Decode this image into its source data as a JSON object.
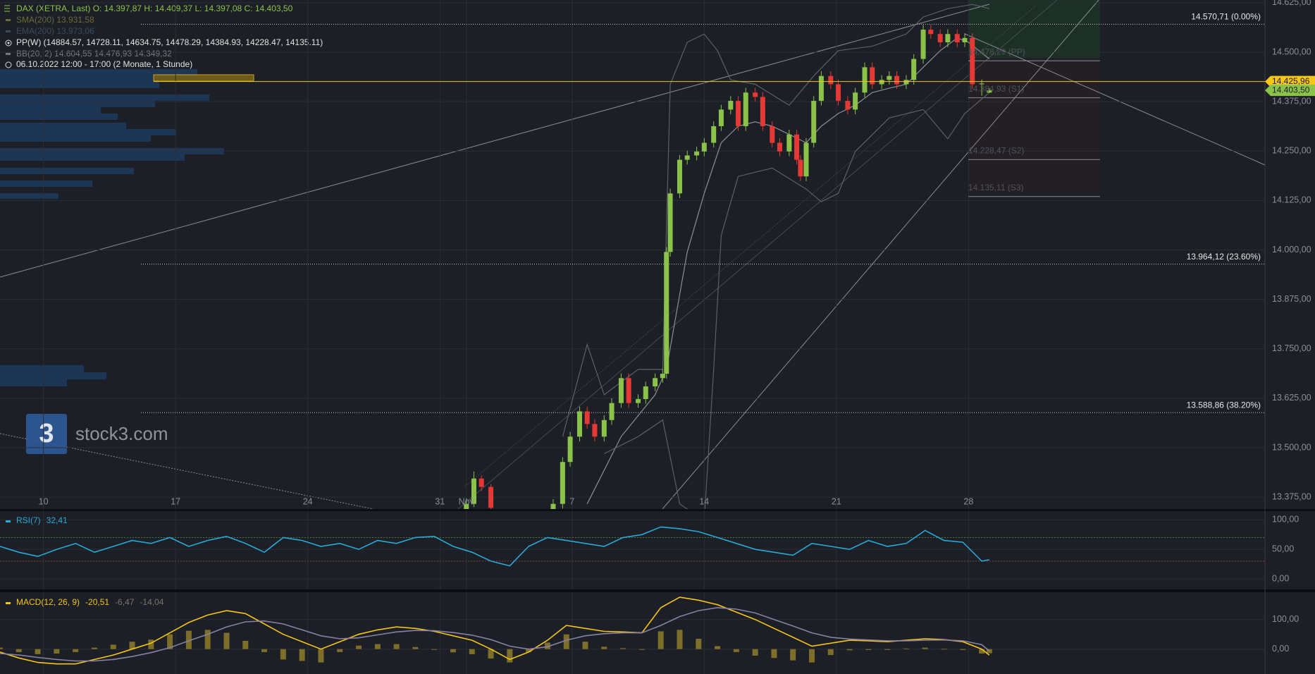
{
  "header": {
    "instrument": "DAX (XETRA, Last)  O: 14.397,87  H: 14.409,37  L: 14.397,08  C: 14.403,50",
    "sma": "SMA(200)  13.931,58",
    "ema": "EMA(200)  13.973,06",
    "pp": "PP(W)  (14884.57, 14728.11, 14634.75, 14478.29, 14384.93, 14228.47, 14135.11)",
    "bb": "BB(20, 2)  14.604,55  14.476,93  14.349,32",
    "period": "06.10.2022 12:00 - 17:00   (2 Monate, 1 Stunde)"
  },
  "watermark": {
    "logo": "3",
    "text": "stock3.com"
  },
  "chart_data": [
    {
      "type": "candlestick",
      "up_color": "#8bc34a",
      "down_color": "#e53935",
      "xlim": [
        0,
        67
      ],
      "xticks": [
        {
          "value": 2.3,
          "label": "10"
        },
        {
          "value": 9.3,
          "label": "17"
        },
        {
          "value": 16.3,
          "label": "24"
        },
        {
          "value": 23.3,
          "label": "31"
        },
        {
          "value": 24.7,
          "label": "Nov"
        },
        {
          "value": 30.3,
          "label": "7"
        },
        {
          "value": 37.3,
          "label": "14"
        },
        {
          "value": 44.3,
          "label": "21"
        },
        {
          "value": 51.3,
          "label": "28"
        }
      ],
      "ylim": [
        13345,
        14632
      ],
      "yticks": [
        {
          "value": 13375,
          "label": "13.375,00"
        },
        {
          "value": 13500,
          "label": "13.500,00"
        },
        {
          "value": 13625,
          "label": "13.625,00"
        },
        {
          "value": 13750,
          "label": "13.750,00"
        },
        {
          "value": 13875,
          "label": "13.875,00"
        },
        {
          "value": 14000,
          "label": "14.000,00"
        },
        {
          "value": 14125,
          "label": "14.125,00"
        },
        {
          "value": 14250,
          "label": "14.250,00"
        },
        {
          "value": 14375,
          "label": "14.375,00"
        },
        {
          "value": 14500,
          "label": "14.500,00"
        },
        {
          "value": 14625,
          "label": "14.625,00"
        }
      ],
      "grid": true,
      "x": [
        24.7,
        25.1,
        25.5,
        26.0,
        29.3,
        29.8,
        30.2,
        30.7,
        31.1,
        31.5,
        32.0,
        32.4,
        32.9,
        33.3,
        33.8,
        34.2,
        34.7,
        35.1,
        35.3,
        35.5,
        36.0,
        36.4,
        36.9,
        37.3,
        37.8,
        38.2,
        38.7,
        39.1,
        39.5,
        40.0,
        40.4,
        40.9,
        41.3,
        41.8,
        42.2,
        42.4,
        42.7,
        43.1,
        43.5,
        44.0,
        44.4,
        44.9,
        45.3,
        45.8,
        46.2,
        46.7,
        47.1,
        47.5,
        48.0,
        48.4,
        48.9,
        49.3,
        49.8,
        50.2,
        50.7,
        51.1,
        51.5,
        52.0,
        52.4
      ],
      "open": [
        13330,
        13358,
        13422,
        13401,
        13320,
        13358,
        13464,
        13528,
        13592,
        13560,
        13528,
        13570,
        13613,
        13676,
        13613,
        13623,
        13655,
        13676,
        13687,
        13995,
        14143,
        14228,
        14239,
        14249,
        14271,
        14313,
        14355,
        14377,
        14313,
        14398,
        14387,
        14313,
        14271,
        14249,
        14292,
        14228,
        14186,
        14271,
        14377,
        14440,
        14419,
        14377,
        14355,
        14398,
        14462,
        14419,
        14430,
        14440,
        14419,
        14430,
        14483,
        14557,
        14546,
        14525,
        14546,
        14525,
        14536,
        14419,
        14397.87
      ],
      "high": [
        13372,
        13440,
        13430,
        13408,
        13370,
        13476,
        13540,
        13604,
        13604,
        13572,
        13582,
        13625,
        13688,
        13688,
        13635,
        13667,
        13688,
        13699,
        14007,
        14155,
        14240,
        14251,
        14261,
        14283,
        14325,
        14367,
        14389,
        14389,
        14410,
        14410,
        14399,
        14325,
        14283,
        14304,
        14304,
        14240,
        14283,
        14389,
        14452,
        14452,
        14431,
        14389,
        14410,
        14474,
        14474,
        14442,
        14452,
        14452,
        14442,
        14495,
        14569,
        14569,
        14558,
        14558,
        14558,
        14548,
        14548,
        14431,
        14409.37
      ],
      "low": [
        13318,
        13350,
        13390,
        13335,
        13305,
        13346,
        13452,
        13516,
        13548,
        13516,
        13516,
        13558,
        13601,
        13601,
        13601,
        13611,
        13643,
        13664,
        13675,
        13983,
        14131,
        14216,
        14227,
        14237,
        14259,
        14301,
        14343,
        14301,
        14301,
        14375,
        14301,
        14259,
        14237,
        14237,
        14216,
        14174,
        14174,
        14259,
        14365,
        14407,
        14365,
        14343,
        14343,
        14386,
        14407,
        14407,
        14418,
        14407,
        14407,
        14418,
        14471,
        14534,
        14513,
        14513,
        14513,
        14513,
        14407,
        14390,
        14397.08
      ],
      "close": [
        13358,
        13422,
        13401,
        13348,
        13358,
        13464,
        13528,
        13592,
        13560,
        13528,
        13570,
        13613,
        13676,
        13613,
        13623,
        13655,
        13676,
        13687,
        13995,
        14143,
        14228,
        14239,
        14249,
        14271,
        14313,
        14355,
        14377,
        14313,
        14398,
        14387,
        14313,
        14271,
        14249,
        14292,
        14228,
        14186,
        14271,
        14377,
        14440,
        14419,
        14377,
        14355,
        14398,
        14462,
        14419,
        14430,
        14440,
        14419,
        14430,
        14483,
        14557,
        14546,
        14525,
        14546,
        14525,
        14536,
        14419,
        14421,
        14403.5
      ],
      "overlays": [
        {
          "color": "#8c8f96",
          "x": [
            31.1,
            32.9,
            34.7,
            35.3,
            36.4,
            37.3,
            38.2,
            39.1,
            40.0,
            40.9,
            41.8,
            42.7,
            43.5,
            44.4,
            45.3,
            46.2,
            47.1,
            48.0,
            48.9,
            49.8,
            50.7,
            51.3,
            52.4
          ],
          "values": [
            13358,
            13528,
            13634,
            13698,
            13995,
            14143,
            14271,
            14313,
            14324,
            14313,
            14292,
            14271,
            14313,
            14345,
            14366,
            14398,
            14409,
            14419,
            14462,
            14504,
            14536,
            14525,
            14483
          ]
        },
        {
          "color": "#5c6068",
          "x": [
            29.8,
            31.1,
            32.0,
            33.8,
            35.1,
            35.5,
            36.4,
            37.3,
            38.0,
            38.7,
            40.0,
            41.8,
            43.1,
            44.4,
            46.2,
            48.0,
            48.9,
            50.2,
            51.5,
            52.4
          ],
          "values": [
            13528,
            13761,
            13634,
            13698,
            13698,
            14419,
            14525,
            14546,
            14504,
            14430,
            14419,
            14366,
            14440,
            14504,
            14515,
            14546,
            14589,
            14610,
            14621,
            14610
          ]
        },
        {
          "color": "#5c6068",
          "x": [
            32.0,
            33.8,
            35.1,
            36.0,
            37.3,
            37.8,
            38.2,
            39.1,
            40.9,
            42.7,
            43.5,
            44.4,
            45.3,
            47.1,
            48.9,
            50.2,
            51.1,
            52.4
          ],
          "values": [
            13485,
            13528,
            13570,
            13358,
            13316,
            13698,
            14037,
            14186,
            14207,
            14154,
            14122,
            14143,
            14249,
            14334,
            14355,
            14281,
            14345,
            14398
          ]
        }
      ],
      "levels": [
        {
          "value": 14570.71,
          "label": "14.570,71 (0.00%)"
        },
        {
          "value": 13964.12,
          "label": "13.964,12 (23.60%)"
        },
        {
          "value": 13588.86,
          "label": "13.588,86 (38.20%)"
        }
      ],
      "pivots": [
        {
          "value": 14478.29,
          "label": "14.478,29 (PP)"
        },
        {
          "value": 14384.93,
          "label": "14.384,93 (S1)"
        },
        {
          "value": 14228.47,
          "label": "14.228,47 (S2)"
        },
        {
          "value": 14135.11,
          "label": "14.135,11 (S3)"
        }
      ],
      "price_tags": [
        {
          "value": 14425.96,
          "label": "14.425,96",
          "color": "#f5c518"
        },
        {
          "value": 14403.5,
          "label": "14.403,50",
          "color": "#8bc34a"
        }
      ]
    },
    {
      "type": "line",
      "title": "RSI(7)",
      "xlim": [
        0,
        67
      ],
      "ylim": [
        -18,
        116
      ],
      "yticks": [
        {
          "value": 0,
          "label": "0,00"
        },
        {
          "value": 50,
          "label": "50,00"
        },
        {
          "value": 100,
          "label": "100,00"
        }
      ],
      "bands": [
        {
          "value": 70,
          "color": "#4c7a3a"
        },
        {
          "value": 30,
          "color": "#8a3a3a"
        }
      ],
      "x": [
        0,
        1,
        2,
        3,
        4,
        5,
        6,
        7,
        8,
        9,
        10,
        11,
        12,
        13,
        14,
        15,
        16,
        17,
        18,
        19,
        20,
        21,
        22,
        23,
        24,
        25,
        26,
        27,
        28,
        29,
        30,
        31,
        32,
        33,
        34,
        35,
        36,
        37,
        38,
        39,
        40,
        41,
        42,
        43,
        44,
        45,
        46,
        47,
        48,
        49,
        50,
        51,
        52,
        52.4
      ],
      "series": [
        {
          "color": "#29a9d6",
          "last_label": "32,41",
          "values": [
            55,
            45,
            38,
            50,
            60,
            45,
            55,
            65,
            60,
            70,
            55,
            65,
            72,
            60,
            45,
            70,
            65,
            55,
            60,
            50,
            65,
            60,
            70,
            72,
            55,
            45,
            30,
            22,
            55,
            70,
            65,
            60,
            55,
            70,
            75,
            88,
            85,
            80,
            70,
            60,
            50,
            45,
            40,
            60,
            55,
            50,
            65,
            55,
            60,
            82,
            65,
            62,
            30,
            32.41
          ]
        }
      ]
    },
    {
      "type": "macd",
      "title": "MACD(12, 26, 9)",
      "xlim": [
        0,
        67
      ],
      "ylim": [
        -84,
        192
      ],
      "yticks": [
        {
          "value": 0,
          "label": "0,00"
        },
        {
          "value": 100,
          "label": "100,00"
        }
      ],
      "x": [
        0,
        1,
        2,
        3,
        4,
        5,
        6,
        7,
        8,
        9,
        10,
        11,
        12,
        13,
        14,
        15,
        16,
        17,
        18,
        19,
        20,
        21,
        22,
        23,
        24,
        25,
        26,
        27,
        28,
        29,
        30,
        31,
        32,
        33,
        34,
        35,
        36,
        37,
        38,
        39,
        40,
        41,
        42,
        43,
        44,
        45,
        46,
        47,
        48,
        49,
        50,
        51,
        52,
        52.4
      ],
      "series": [
        {
          "kind": "line",
          "color": "#f5c518",
          "last_label": "-20,51",
          "values": [
            -10,
            -30,
            -45,
            -50,
            -50,
            -35,
            -20,
            0,
            20,
            55,
            90,
            115,
            130,
            120,
            85,
            50,
            25,
            0,
            25,
            50,
            65,
            75,
            70,
            60,
            45,
            30,
            0,
            -35,
            -10,
            30,
            80,
            70,
            60,
            58,
            55,
            140,
            175,
            165,
            150,
            125,
            100,
            70,
            40,
            10,
            20,
            30,
            28,
            25,
            30,
            35,
            32,
            25,
            0,
            -20.51
          ]
        },
        {
          "kind": "line",
          "color": "#8a7fa6",
          "last_label": "-6,47",
          "values": [
            -15,
            -20,
            -28,
            -35,
            -40,
            -40,
            -35,
            -25,
            -12,
            5,
            28,
            50,
            75,
            92,
            95,
            85,
            65,
            45,
            35,
            38,
            48,
            58,
            63,
            62,
            56,
            47,
            32,
            10,
            0,
            8,
            30,
            45,
            52,
            55,
            55,
            80,
            110,
            130,
            140,
            135,
            122,
            100,
            78,
            55,
            40,
            34,
            31,
            28,
            28,
            30,
            31,
            28,
            15,
            -6.47
          ]
        },
        {
          "kind": "bar",
          "color": "#7d6e2a",
          "last_label": "-14,04",
          "values": [
            5,
            -10,
            -17,
            -15,
            -10,
            5,
            15,
            25,
            32,
            50,
            62,
            65,
            55,
            28,
            -10,
            -35,
            -40,
            -45,
            -10,
            12,
            17,
            17,
            7,
            -2,
            -11,
            -17,
            -32,
            -45,
            -10,
            22,
            50,
            25,
            8,
            3,
            0,
            60,
            65,
            35,
            10,
            -10,
            -22,
            -30,
            -38,
            -45,
            -20,
            -4,
            -3,
            -3,
            2,
            5,
            1,
            -3,
            -15,
            -14.04
          ]
        }
      ]
    }
  ]
}
